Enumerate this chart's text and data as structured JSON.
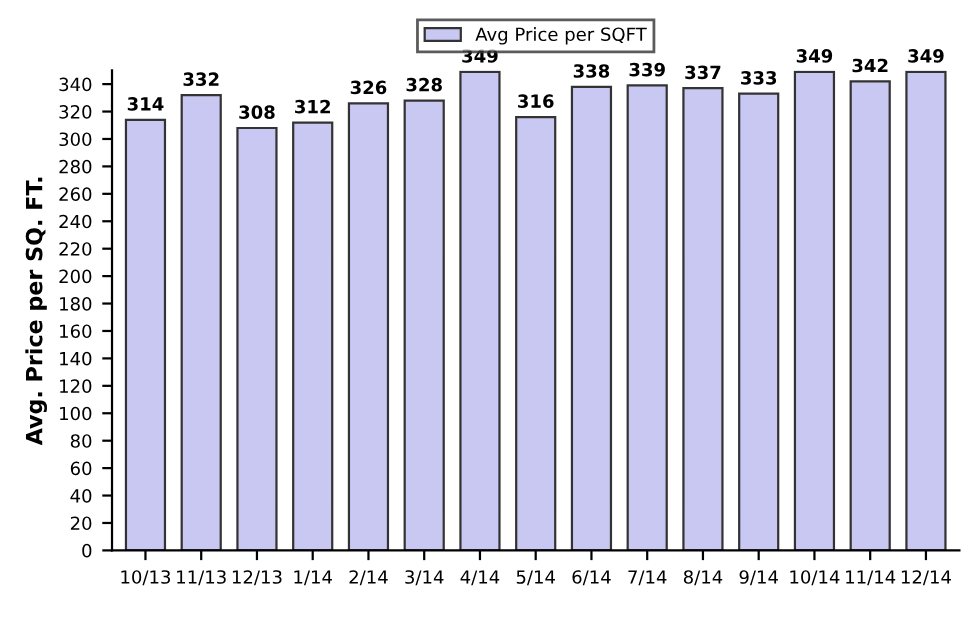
{
  "chart_data": {
    "type": "bar",
    "ylabel": "Avg. Price per SQ. FT.",
    "categories": [
      "10/13",
      "11/13",
      "12/13",
      "1/14",
      "2/14",
      "3/14",
      "4/14",
      "5/14",
      "6/14",
      "7/14",
      "8/14",
      "9/14",
      "10/14",
      "11/14",
      "12/14"
    ],
    "series": [
      {
        "name": "Avg Price per SQFT",
        "color": "#c8c8f2",
        "values": [
          314,
          332,
          308,
          312,
          326,
          328,
          349,
          316,
          338,
          339,
          337,
          333,
          349,
          342,
          349
        ]
      }
    ],
    "ylim": [
      0,
      350
    ],
    "yticks": [
      0,
      20,
      40,
      60,
      80,
      100,
      120,
      140,
      160,
      180,
      200,
      220,
      240,
      260,
      280,
      300,
      320,
      340
    ],
    "data_labels": true,
    "grid": false,
    "legend": "top"
  }
}
